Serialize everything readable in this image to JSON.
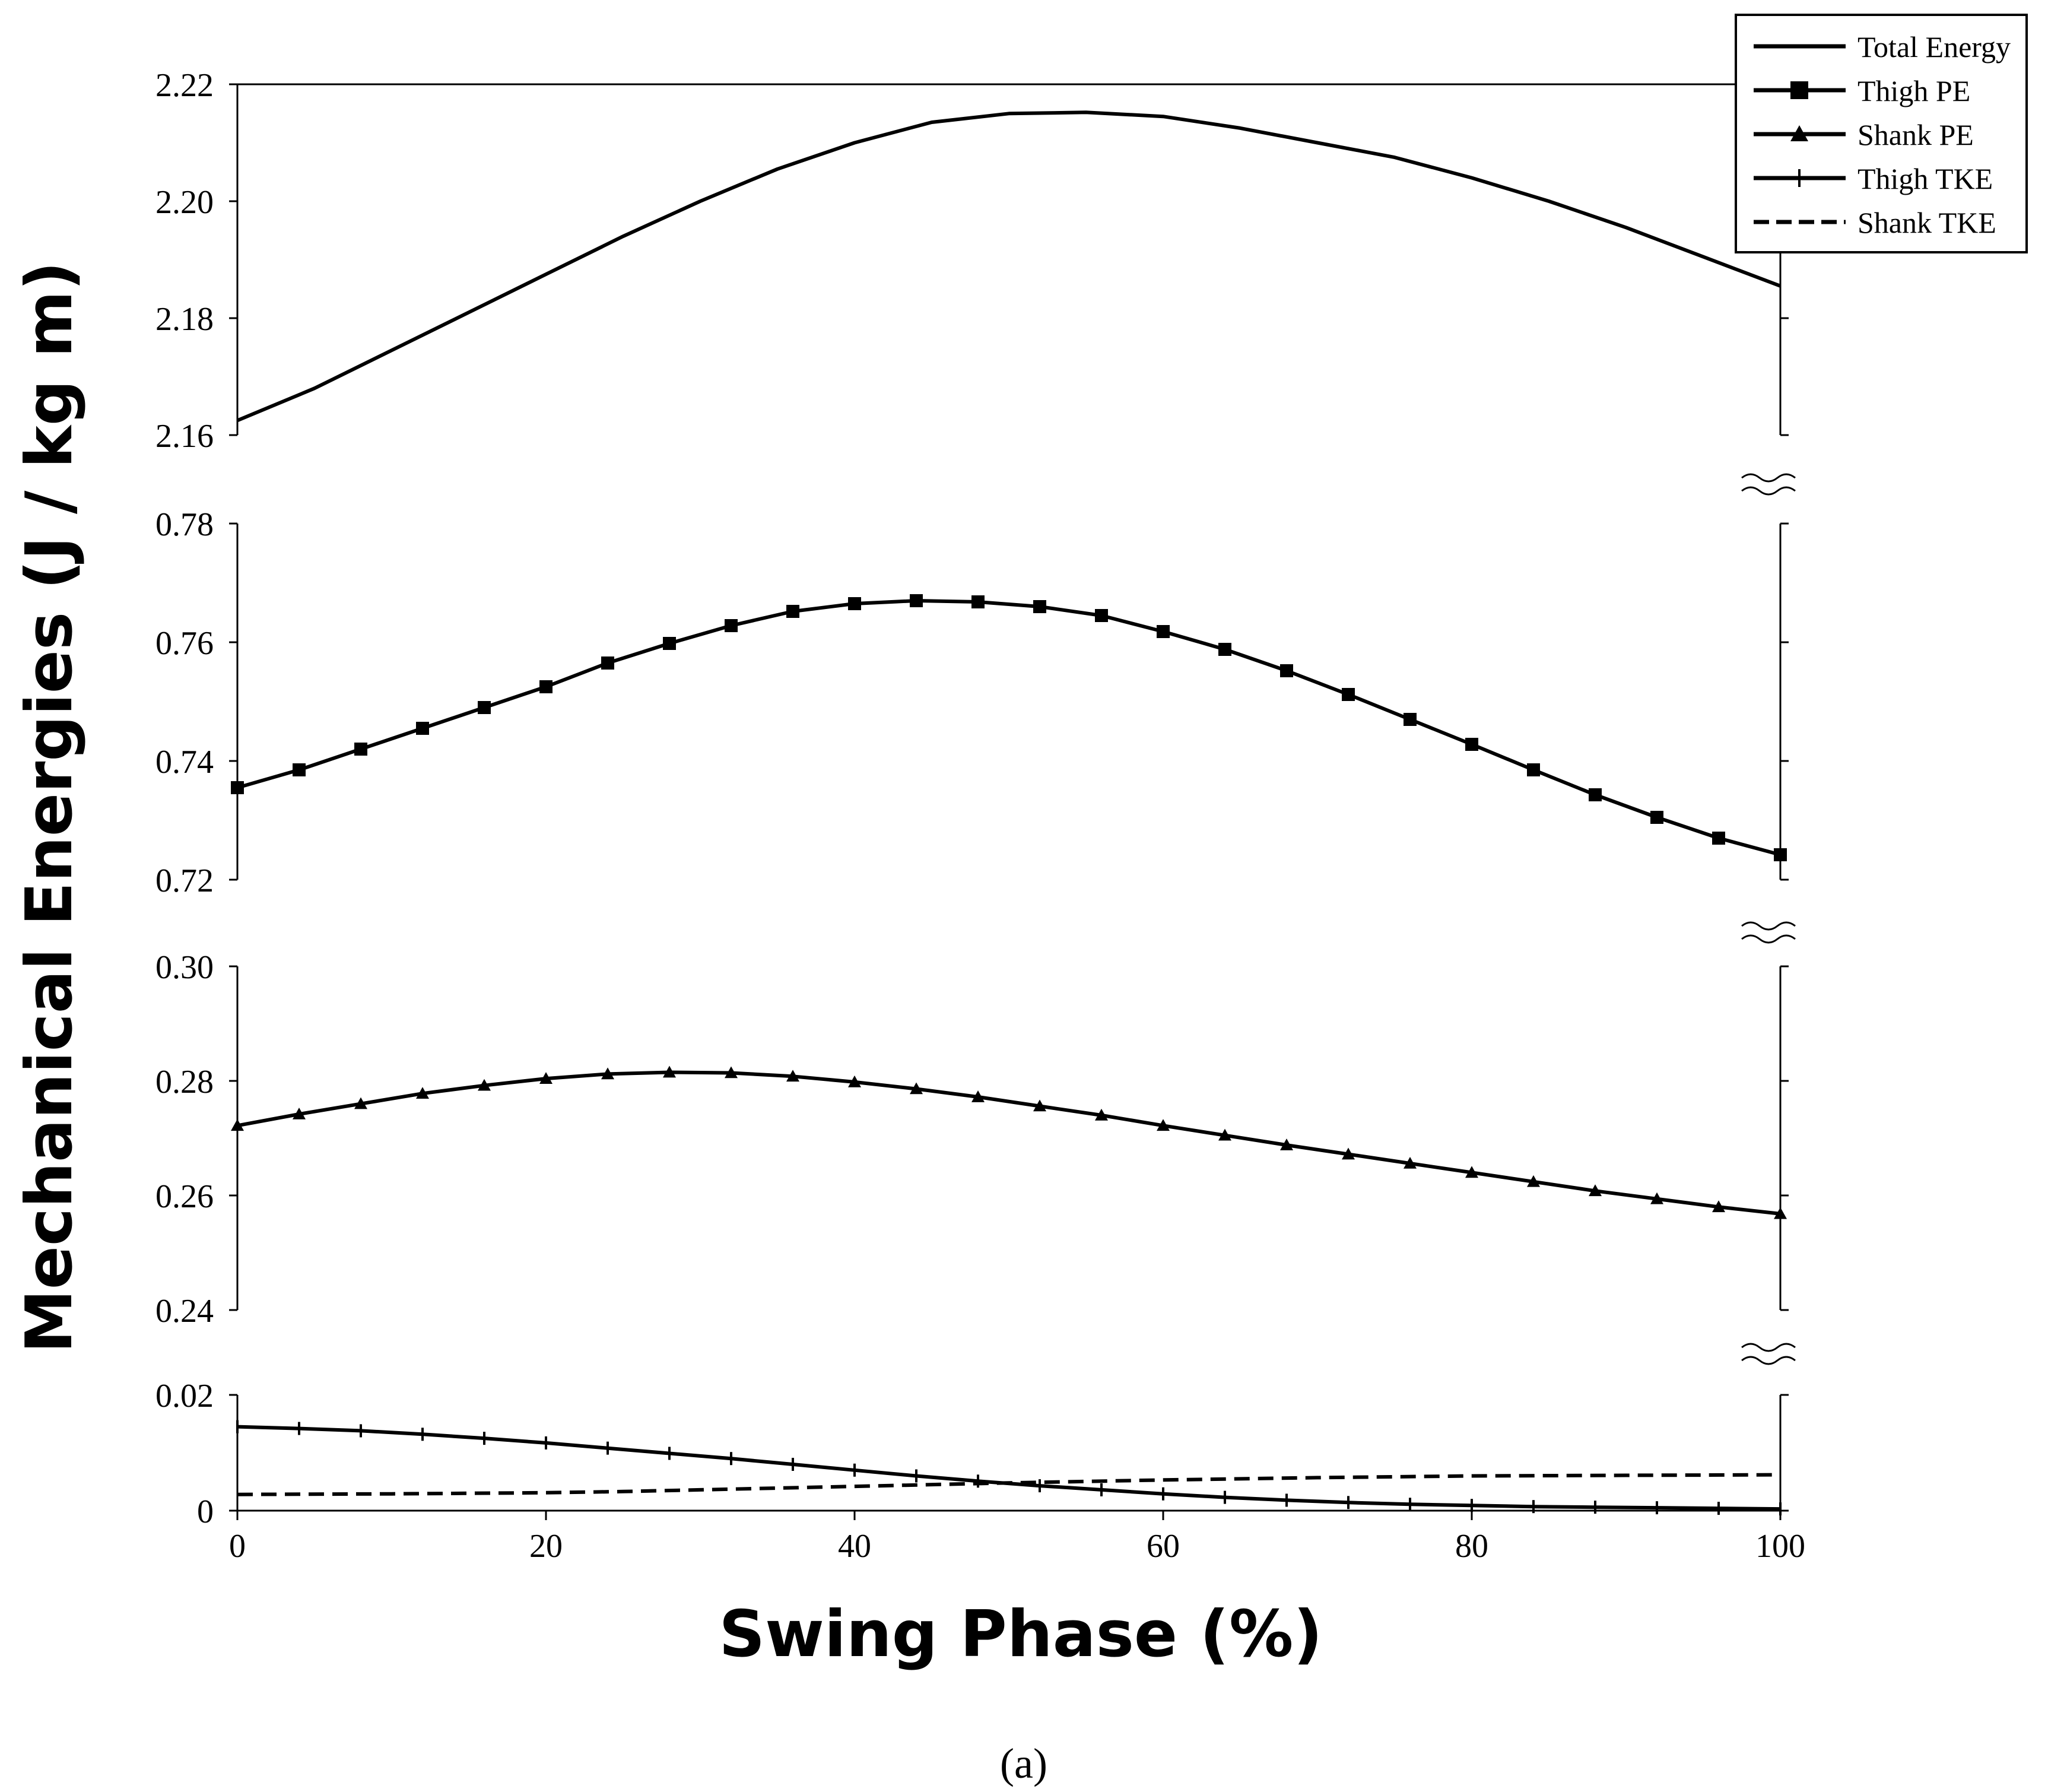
{
  "chart_data": {
    "type": "line",
    "ylabel": "Mechanical Energies (J / kg m)",
    "xlabel": "Swing Phase (%)",
    "caption": "(a)",
    "x_ticks": [
      "0",
      "20",
      "40",
      "60",
      "80",
      "100"
    ],
    "xlim": [
      0,
      100
    ],
    "legend": {
      "position": "top-right",
      "entries": [
        {
          "label": "Total Energy",
          "marker": "none",
          "dash": "solid"
        },
        {
          "label": "Thigh PE",
          "marker": "square",
          "dash": "solid"
        },
        {
          "label": "Shank PE",
          "marker": "triangle",
          "dash": "solid"
        },
        {
          "label": "Thigh TKE",
          "marker": "plus",
          "dash": "solid"
        },
        {
          "label": "Shank TKE",
          "marker": "none",
          "dash": "dashed"
        }
      ]
    },
    "panels": [
      {
        "name": "total-energy",
        "ylim": [
          2.16,
          2.22
        ],
        "y_ticks": [
          "2.16",
          "2.18",
          "2.20",
          "2.22"
        ],
        "series": [
          {
            "name": "Total Energy",
            "marker": "none",
            "dash": "solid",
            "x": [
              0,
              5,
              10,
              15,
              20,
              25,
              30,
              35,
              40,
              45,
              50,
              55,
              60,
              65,
              70,
              75,
              80,
              85,
              90,
              95,
              100
            ],
            "y": [
              2.1625,
              2.168,
              2.1745,
              2.181,
              2.1875,
              2.194,
              2.2,
              2.2055,
              2.21,
              2.2135,
              2.215,
              2.2152,
              2.2145,
              2.2125,
              2.21,
              2.2075,
              2.204,
              2.2,
              2.1955,
              2.1905,
              2.1855
            ]
          }
        ]
      },
      {
        "name": "thigh-pe",
        "ylim": [
          0.72,
          0.78
        ],
        "y_ticks": [
          "0.72",
          "0.74",
          "0.76",
          "0.78"
        ],
        "series": [
          {
            "name": "Thigh PE",
            "marker": "square",
            "dash": "solid",
            "x": [
              0,
              4,
              8,
              12,
              16,
              20,
              24,
              28,
              32,
              36,
              40,
              44,
              48,
              52,
              56,
              60,
              64,
              68,
              72,
              76,
              80,
              84,
              88,
              92,
              96,
              100
            ],
            "y": [
              0.7355,
              0.7385,
              0.742,
              0.7455,
              0.749,
              0.7525,
              0.7565,
              0.7598,
              0.7628,
              0.7652,
              0.7665,
              0.767,
              0.7668,
              0.766,
              0.7645,
              0.7618,
              0.7588,
              0.7552,
              0.7512,
              0.747,
              0.7428,
              0.7385,
              0.7343,
              0.7305,
              0.727,
              0.7242
            ]
          }
        ]
      },
      {
        "name": "shank-pe",
        "ylim": [
          0.24,
          0.3
        ],
        "y_ticks": [
          "0.24",
          "0.26",
          "0.28",
          "0.30"
        ],
        "series": [
          {
            "name": "Shank PE",
            "marker": "triangle",
            "dash": "solid",
            "x": [
              0,
              4,
              8,
              12,
              16,
              20,
              24,
              28,
              32,
              36,
              40,
              44,
              48,
              52,
              56,
              60,
              64,
              68,
              72,
              76,
              80,
              84,
              88,
              92,
              96,
              100
            ],
            "y": [
              0.2722,
              0.2742,
              0.276,
              0.2778,
              0.2792,
              0.2804,
              0.2812,
              0.2815,
              0.2814,
              0.2808,
              0.2798,
              0.2786,
              0.2772,
              0.2756,
              0.274,
              0.2722,
              0.2705,
              0.2688,
              0.2672,
              0.2656,
              0.264,
              0.2624,
              0.2608,
              0.2594,
              0.258,
              0.2568
            ]
          }
        ]
      },
      {
        "name": "kinetic-energies",
        "ylim": [
          0,
          0.02
        ],
        "y_ticks": [
          "0",
          "0.02"
        ],
        "series": [
          {
            "name": "Thigh TKE",
            "marker": "plus",
            "dash": "solid",
            "x": [
              0,
              4,
              8,
              12,
              16,
              20,
              24,
              28,
              32,
              36,
              40,
              44,
              48,
              52,
              56,
              60,
              64,
              68,
              72,
              76,
              80,
              84,
              88,
              92,
              96,
              100
            ],
            "y": [
              0.0145,
              0.0142,
              0.0138,
              0.0132,
              0.0125,
              0.0117,
              0.0108,
              0.0099,
              0.009,
              0.008,
              0.007,
              0.006,
              0.0051,
              0.0043,
              0.0036,
              0.0029,
              0.0023,
              0.0018,
              0.0014,
              0.0011,
              0.0009,
              0.0007,
              0.0006,
              0.0005,
              0.0004,
              0.0003
            ]
          },
          {
            "name": "Shank TKE",
            "marker": "none",
            "dash": "dashed",
            "x": [
              0,
              10,
              20,
              25,
              30,
              40,
              50,
              60,
              70,
              80,
              90,
              100
            ],
            "y": [
              0.0028,
              0.0029,
              0.0031,
              0.0033,
              0.0036,
              0.0042,
              0.0048,
              0.0053,
              0.0057,
              0.006,
              0.0061,
              0.0062
            ]
          }
        ]
      }
    ]
  }
}
